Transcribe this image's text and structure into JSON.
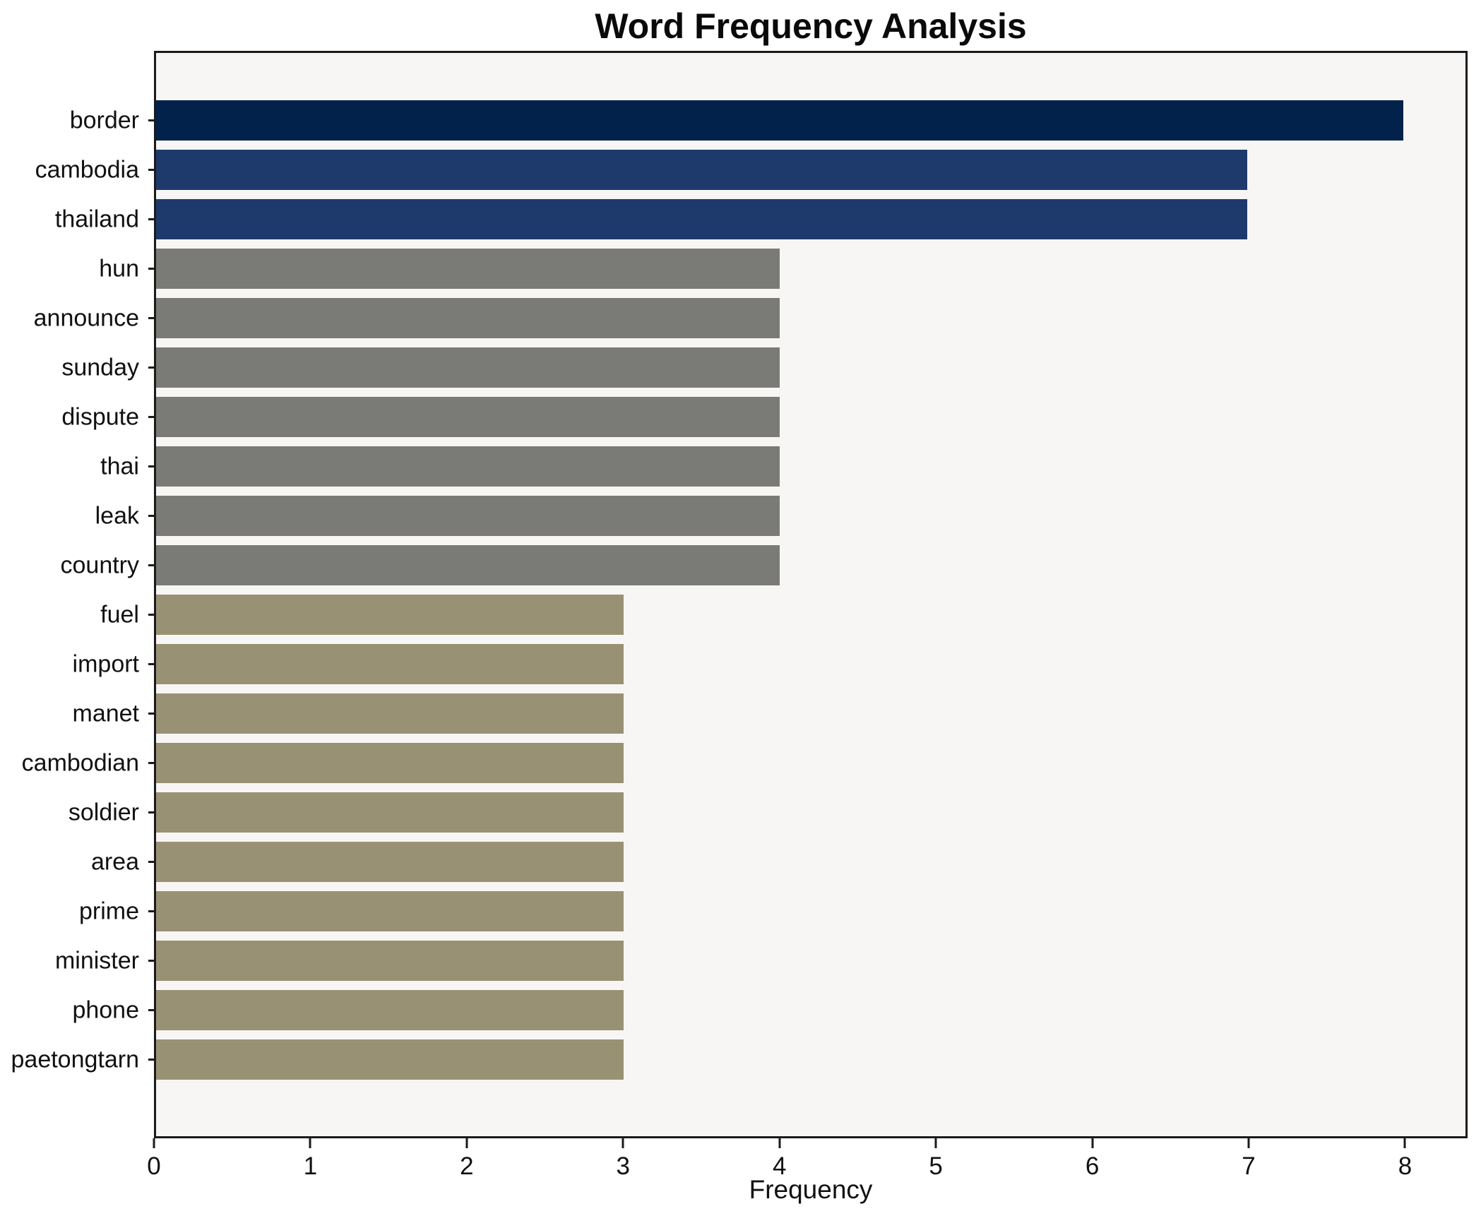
{
  "chart_data": {
    "type": "bar",
    "orientation": "horizontal",
    "title": "Word Frequency Analysis",
    "xlabel": "Frequency",
    "ylabel": "",
    "categories": [
      "border",
      "cambodia",
      "thailand",
      "hun",
      "announce",
      "sunday",
      "dispute",
      "thai",
      "leak",
      "country",
      "fuel",
      "import",
      "manet",
      "cambodian",
      "soldier",
      "area",
      "prime",
      "minister",
      "phone",
      "paetongtarn"
    ],
    "values": [
      8,
      7,
      7,
      4,
      4,
      4,
      4,
      4,
      4,
      4,
      3,
      3,
      3,
      3,
      3,
      3,
      3,
      3,
      3,
      3
    ],
    "bar_colors": [
      "#02224b",
      "#1e3a6d",
      "#1e3a6d",
      "#7a7a76",
      "#7a7a76",
      "#7a7a76",
      "#7a7a76",
      "#7a7a76",
      "#7a7a76",
      "#7a7a76",
      "#999174",
      "#999174",
      "#999174",
      "#999174",
      "#999174",
      "#999174",
      "#999174",
      "#999174",
      "#999174",
      "#999174"
    ],
    "xlim": [
      0,
      8.4
    ],
    "xticks": [
      0,
      1,
      2,
      3,
      4,
      5,
      6,
      7,
      8
    ],
    "grid": false,
    "legend_position": "none",
    "plot_background": "#f7f6f4",
    "frame_color": "#1b1b1b",
    "title_color": "#0a0a0a",
    "tick_label_color": "#111111"
  }
}
